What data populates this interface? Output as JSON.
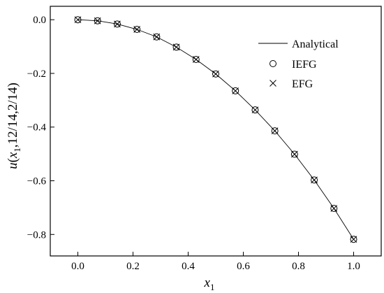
{
  "chart_data": {
    "type": "line",
    "xlim": [
      -0.1,
      1.1
    ],
    "ylim": [
      -0.88,
      0.05
    ],
    "x_ticks": [
      0.0,
      0.2,
      0.4,
      0.6,
      0.8,
      1.0
    ],
    "x_tick_labels": [
      "0.0",
      "0.2",
      "0.4",
      "0.6",
      "0.8",
      "1.0"
    ],
    "y_ticks": [
      0.0,
      -0.2,
      -0.4,
      -0.6,
      -0.8
    ],
    "y_tick_labels": [
      "0.0",
      "−0.2",
      "−0.4",
      "−0.6",
      "−0.8"
    ],
    "xlabel": {
      "main": "x",
      "sub": "1"
    },
    "ylabel": {
      "u": "u",
      "open": "(",
      "x": "x",
      "sub": "1",
      "rest": ",12/14,2/14)"
    },
    "grid": false,
    "legend_position": "top-right",
    "series": [
      {
        "name": "Analytical",
        "style": "line",
        "x": [
          0,
          0.0714,
          0.1429,
          0.2143,
          0.2857,
          0.3571,
          0.4286,
          0.5,
          0.5714,
          0.6429,
          0.7143,
          0.7857,
          0.8571,
          0.9286,
          1.0
        ],
        "y": [
          0.0,
          -0.004,
          -0.016,
          -0.036,
          -0.064,
          -0.102,
          -0.148,
          -0.202,
          -0.265,
          -0.336,
          -0.414,
          -0.501,
          -0.597,
          -0.703,
          -0.818
        ]
      },
      {
        "name": "IEFG",
        "style": "circle",
        "x": [
          0,
          0.0714,
          0.1429,
          0.2143,
          0.2857,
          0.3571,
          0.4286,
          0.5,
          0.5714,
          0.6429,
          0.7143,
          0.7857,
          0.8571,
          0.9286,
          1.0
        ],
        "y": [
          0.0,
          -0.004,
          -0.016,
          -0.036,
          -0.064,
          -0.102,
          -0.148,
          -0.202,
          -0.265,
          -0.336,
          -0.414,
          -0.501,
          -0.597,
          -0.703,
          -0.818
        ]
      },
      {
        "name": "EFG",
        "style": "cross",
        "x": [
          0,
          0.0714,
          0.1429,
          0.2143,
          0.2857,
          0.3571,
          0.4286,
          0.5,
          0.5714,
          0.6429,
          0.7143,
          0.7857,
          0.8571,
          0.9286,
          1.0
        ],
        "y": [
          0.0,
          -0.004,
          -0.016,
          -0.036,
          -0.064,
          -0.102,
          -0.148,
          -0.202,
          -0.265,
          -0.336,
          -0.414,
          -0.501,
          -0.597,
          -0.703,
          -0.818
        ]
      }
    ]
  }
}
